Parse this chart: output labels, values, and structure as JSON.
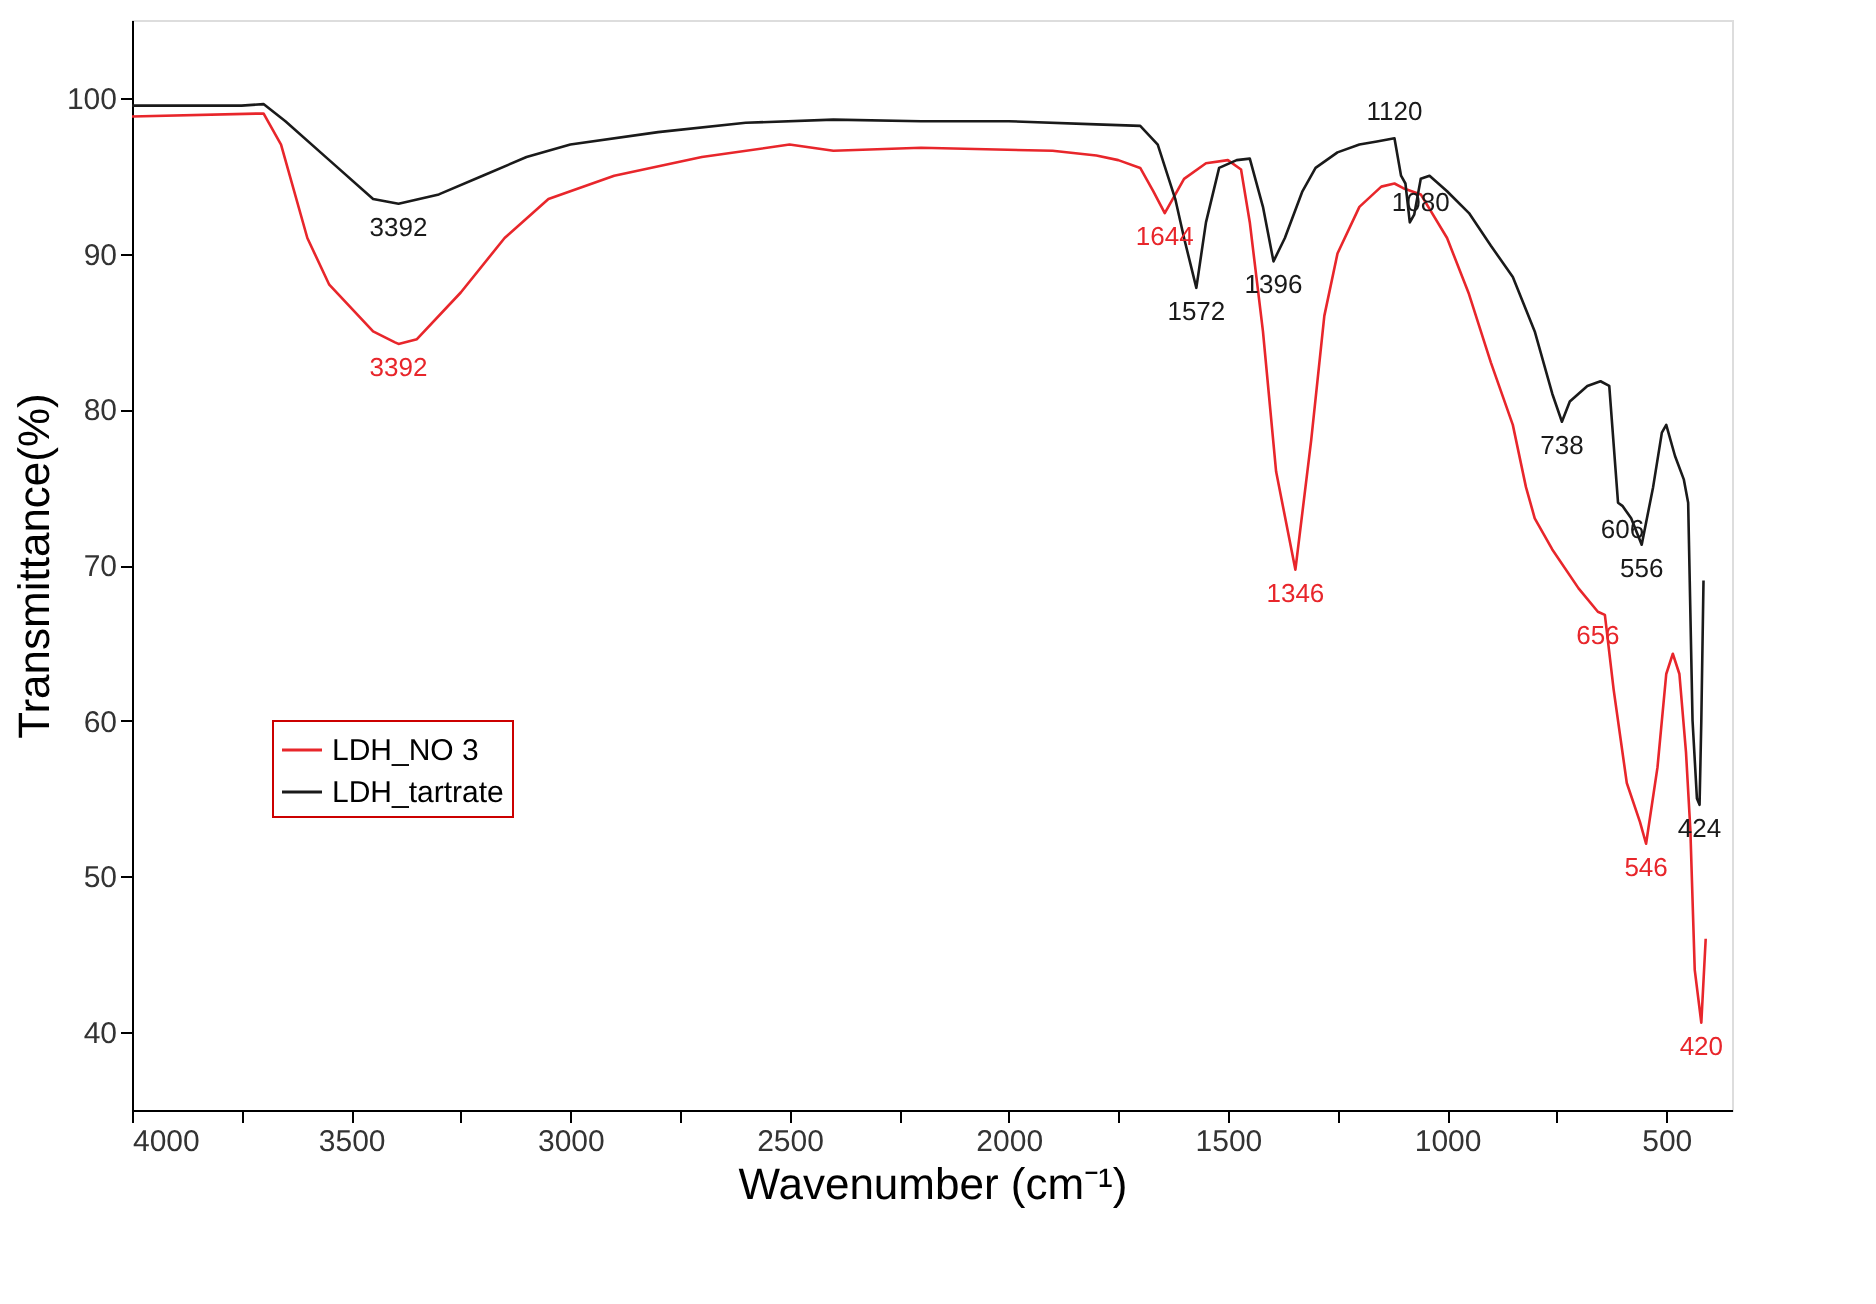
{
  "chart_data": {
    "type": "line",
    "xlabel": "Wavenumber (cm⁻¹)",
    "ylabel": "Transmittance(%)",
    "xlim": [
      4000,
      350
    ],
    "ylim": [
      35,
      105
    ],
    "xticks": [
      4000,
      {
        "value": 3750,
        "label": null
      },
      3500,
      {
        "value": 3250,
        "label": null
      },
      3000,
      {
        "value": 2750,
        "label": null
      },
      2500,
      {
        "value": 2250,
        "label": null
      },
      2000,
      {
        "value": 1750,
        "label": null
      },
      1500,
      {
        "value": 1250,
        "label": null
      },
      1000,
      {
        "value": 750,
        "label": null
      },
      500
    ],
    "yticks": [
      40,
      50,
      60,
      70,
      80,
      90,
      100
    ],
    "grid": false,
    "legend": "left",
    "line_style": "solid",
    "marker": "none",
    "series": [
      {
        "name": "LDH_NO 3",
        "color": "#e8262b",
        "x": [
          4000,
          3700,
          3660,
          3600,
          3550,
          3450,
          3400,
          3392,
          3350,
          3250,
          3150,
          3050,
          2900,
          2700,
          2500,
          2400,
          2200,
          1900,
          1800,
          1750,
          1700,
          1670,
          1644,
          1600,
          1550,
          1500,
          1470,
          1450,
          1420,
          1390,
          1346,
          1310,
          1280,
          1250,
          1200,
          1150,
          1120,
          1100,
          1060,
          1000,
          950,
          900,
          850,
          820,
          800,
          760,
          700,
          656,
          640,
          620,
          590,
          560,
          546,
          520,
          500,
          485,
          470,
          455,
          445,
          435,
          420,
          410
        ],
        "values": [
          98.8,
          99,
          97,
          91,
          88,
          85,
          84.3,
          84.2,
          84.5,
          87.5,
          91,
          93.5,
          95,
          96.2,
          97,
          96.6,
          96.8,
          96.6,
          96.3,
          96,
          95.5,
          94,
          92.6,
          94.8,
          95.8,
          96,
          95.4,
          92,
          85,
          76,
          69.7,
          78,
          86,
          90,
          93,
          94.3,
          94.5,
          94.2,
          93.8,
          91,
          87.4,
          83,
          79,
          75,
          73,
          71,
          68.5,
          67,
          66.8,
          62,
          56,
          53.5,
          52.1,
          57,
          63,
          64.3,
          63,
          58,
          53,
          44,
          40.6,
          46
        ]
      },
      {
        "name": "LDH_tartrate",
        "color": "#1a1a1a",
        "x": [
          4000,
          3750,
          3700,
          3650,
          3550,
          3450,
          3392,
          3300,
          3200,
          3100,
          3000,
          2800,
          2600,
          2400,
          2200,
          2000,
          1800,
          1700,
          1660,
          1620,
          1600,
          1572,
          1550,
          1520,
          1480,
          1450,
          1420,
          1396,
          1370,
          1330,
          1300,
          1250,
          1200,
          1160,
          1120,
          1105,
          1095,
          1085,
          1075,
          1060,
          1040,
          1000,
          950,
          900,
          850,
          800,
          760,
          738,
          720,
          680,
          650,
          630,
          610,
          600,
          580,
          556,
          530,
          510,
          500,
          480,
          460,
          450,
          440,
          430,
          424,
          420,
          415
        ],
        "values": [
          99.5,
          99.5,
          99.6,
          98.5,
          96,
          93.5,
          93.2,
          93.8,
          95,
          96.2,
          97,
          97.8,
          98.4,
          98.6,
          98.5,
          98.5,
          98.3,
          98.2,
          97,
          93.5,
          91,
          87.8,
          92,
          95.5,
          96,
          96.1,
          93,
          89.5,
          91,
          94,
          95.5,
          96.5,
          97,
          97.2,
          97.4,
          95,
          94.5,
          92,
          92.5,
          94.8,
          95,
          94,
          92.6,
          90.5,
          88.5,
          85,
          81,
          79.2,
          80.5,
          81.5,
          81.8,
          81.5,
          74,
          73.8,
          73,
          71.3,
          75,
          78.5,
          79,
          77,
          75.5,
          74,
          60,
          55,
          54.6,
          60,
          69
        ]
      }
    ],
    "annotations": [
      {
        "text": "3392",
        "x": 3392,
        "y": 93.2
      },
      {
        "text": "3392",
        "x": 3392,
        "y": 84.2
      },
      {
        "text": "1644",
        "x": 1644,
        "y": 92.6
      },
      {
        "text": "1572",
        "x": 1572,
        "y": 87.8
      },
      {
        "text": "1396",
        "x": 1396,
        "y": 89.5
      },
      {
        "text": "1120",
        "x": 1120,
        "y": 97.4
      },
      {
        "text": "1080",
        "x": 1060,
        "y": 94.8
      },
      {
        "text": "1346",
        "x": 1346,
        "y": 69.7
      },
      {
        "text": "738",
        "x": 738,
        "y": 79.2
      },
      {
        "text": "606",
        "x": 600,
        "y": 73.8
      },
      {
        "text": "556",
        "x": 556,
        "y": 71.3
      },
      {
        "text": "656",
        "x": 656,
        "y": 67
      },
      {
        "text": "546",
        "x": 546,
        "y": 52.1
      },
      {
        "text": "424",
        "x": 424,
        "y": 54.6
      },
      {
        "text": "420",
        "x": 420,
        "y": 40.6
      }
    ]
  }
}
